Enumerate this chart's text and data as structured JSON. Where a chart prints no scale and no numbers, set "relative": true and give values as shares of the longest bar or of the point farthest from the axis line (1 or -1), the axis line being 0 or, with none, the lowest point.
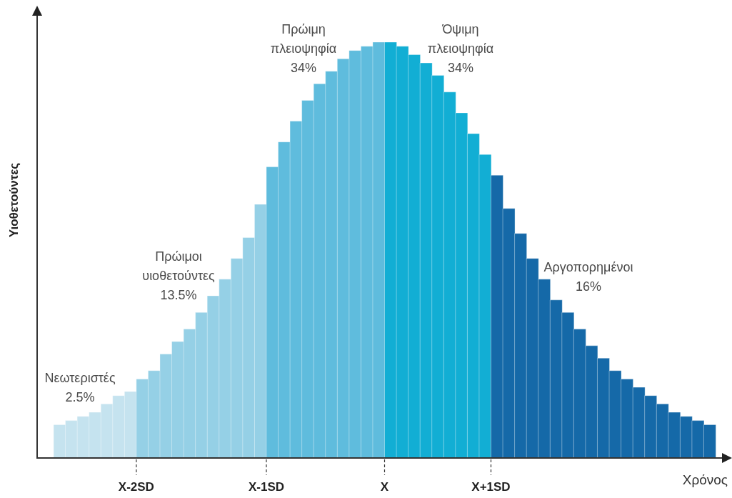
{
  "chart_data": {
    "type": "bar",
    "relative": true,
    "xlabel": "Χρόνος",
    "ylabel": "Υιοθετούντες",
    "categories": [
      null,
      null,
      null,
      null,
      null,
      null,
      null,
      null,
      null,
      null,
      null,
      null,
      null,
      null,
      null,
      null,
      null,
      null,
      null,
      null,
      null,
      null,
      null,
      null,
      null,
      null,
      null,
      null,
      null,
      null,
      null,
      null,
      null,
      null,
      null,
      null,
      null,
      null,
      null,
      null,
      null,
      null,
      null,
      null,
      null,
      null,
      null,
      null,
      null,
      null,
      null,
      null,
      null,
      null,
      null,
      null
    ],
    "values": [
      0.08,
      0.09,
      0.1,
      0.11,
      0.13,
      0.15,
      0.16,
      0.19,
      0.21,
      0.25,
      0.28,
      0.31,
      0.35,
      0.39,
      0.43,
      0.48,
      0.53,
      0.61,
      0.7,
      0.76,
      0.81,
      0.86,
      0.9,
      0.93,
      0.96,
      0.98,
      0.99,
      1,
      1,
      0.99,
      0.97,
      0.95,
      0.92,
      0.88,
      0.83,
      0.78,
      0.73,
      0.68,
      0.6,
      0.54,
      0.48,
      0.43,
      0.38,
      0.35,
      0.31,
      0.27,
      0.24,
      0.21,
      0.19,
      0.17,
      0.15,
      0.13,
      0.11,
      0.1,
      0.09,
      0.08
    ],
    "colors": [
      "#c5e3ef",
      "#c5e3ef",
      "#c5e3ef",
      "#c5e3ef",
      "#c5e3ef",
      "#c5e3ef",
      "#c5e3ef",
      "#95d0e6",
      "#95d0e6",
      "#95d0e6",
      "#95d0e6",
      "#95d0e6",
      "#95d0e6",
      "#95d0e6",
      "#95d0e6",
      "#95d0e6",
      "#95d0e6",
      "#95d0e6",
      "#5fbcdd",
      "#5fbcdd",
      "#5fbcdd",
      "#5fbcdd",
      "#5fbcdd",
      "#5fbcdd",
      "#5fbcdd",
      "#5fbcdd",
      "#5fbcdd",
      "#5fbcdd",
      "#12aed4",
      "#12aed4",
      "#12aed4",
      "#12aed4",
      "#12aed4",
      "#12aed4",
      "#12aed4",
      "#12aed4",
      "#12aed4",
      "#1569a8",
      "#1569a8",
      "#1569a8",
      "#1569a8",
      "#1569a8",
      "#1569a8",
      "#1569a8",
      "#1569a8",
      "#1569a8",
      "#1569a8",
      "#1569a8",
      "#1569a8",
      "#1569a8",
      "#1569a8",
      "#1569a8",
      "#1569a8",
      "#1569a8",
      "#1569a8",
      "#1569a8"
    ],
    "annotations": [
      "Νεωτεριστές\n2.5%",
      "Πρώιμοι\nυιοθετούντες\n13.5%",
      "Πρώιμη\nπλειοψηφία\n34%",
      "Όψιμη\nπλειοψηφία\n34%",
      "Αργοπορημένοι\n16%",
      "X-2SD",
      "X-1SD",
      "X",
      "X+1SD"
    ]
  }
}
